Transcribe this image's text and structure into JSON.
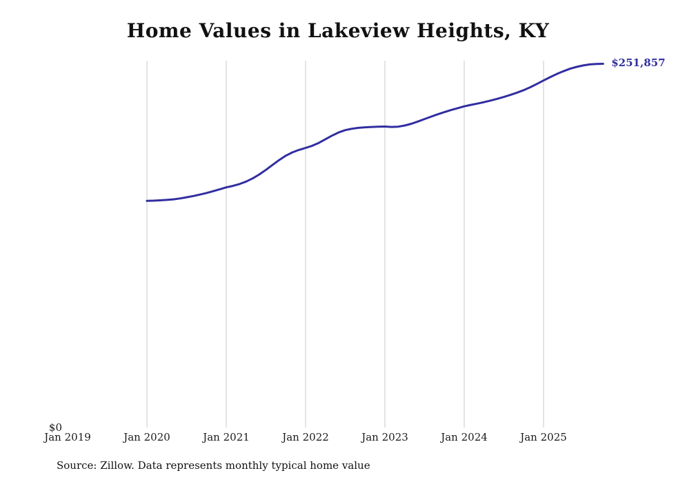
{
  "chart_data": {
    "type": "line",
    "title": "Home Values in Lakeview Heights, KY",
    "source": "Source: Zillow. Data represents monthly typical home value",
    "end_label": "$251,857",
    "line_color": "#312ea0",
    "gridline_color": "#c9c9c9",
    "grid": "vertical-only",
    "legend_position": "none",
    "y_axis": {
      "min_label": "$0",
      "ylim": [
        0,
        254000
      ]
    },
    "x_ticks": [
      {
        "label": "Jan 2019",
        "month": "2019-01",
        "gridline": false
      },
      {
        "label": "Jan 2020",
        "month": "2020-01",
        "gridline": true
      },
      {
        "label": "Jan 2021",
        "month": "2021-01",
        "gridline": true
      },
      {
        "label": "Jan 2022",
        "month": "2022-01",
        "gridline": true
      },
      {
        "label": "Jan 2023",
        "month": "2023-01",
        "gridline": true
      },
      {
        "label": "Jan 2024",
        "month": "2024-01",
        "gridline": true
      },
      {
        "label": "Jan 2025",
        "month": "2025-01",
        "gridline": true
      }
    ],
    "series": [
      {
        "name": "Monthly typical home value",
        "color": "#312ea0",
        "x": [
          "2020-01",
          "2020-02",
          "2020-03",
          "2020-04",
          "2020-05",
          "2020-06",
          "2020-07",
          "2020-08",
          "2020-09",
          "2020-10",
          "2020-11",
          "2020-12",
          "2021-01",
          "2021-02",
          "2021-03",
          "2021-04",
          "2021-05",
          "2021-06",
          "2021-07",
          "2021-08",
          "2021-09",
          "2021-10",
          "2021-11",
          "2021-12",
          "2022-01",
          "2022-02",
          "2022-03",
          "2022-04",
          "2022-05",
          "2022-06",
          "2022-07",
          "2022-08",
          "2022-09",
          "2022-10",
          "2022-11",
          "2022-12",
          "2023-01",
          "2023-02",
          "2023-03",
          "2023-04",
          "2023-05",
          "2023-06",
          "2023-07",
          "2023-08",
          "2023-09",
          "2023-10",
          "2023-11",
          "2023-12",
          "2024-01",
          "2024-02",
          "2024-03",
          "2024-04",
          "2024-05",
          "2024-06",
          "2024-07",
          "2024-08",
          "2024-09",
          "2024-10",
          "2024-11",
          "2024-12",
          "2025-01",
          "2025-02",
          "2025-03",
          "2025-04",
          "2025-05",
          "2025-06",
          "2025-07",
          "2025-08",
          "2025-09",
          "2025-10"
        ],
        "values": [
          157000,
          157100,
          157300,
          157600,
          158000,
          158600,
          159400,
          160300,
          161300,
          162400,
          163600,
          164900,
          166300,
          167300,
          168600,
          170300,
          172500,
          175200,
          178400,
          181800,
          185200,
          188200,
          190500,
          192200,
          193600,
          195100,
          197100,
          199600,
          202100,
          204300,
          205900,
          206900,
          207500,
          207900,
          208100,
          208300,
          208400,
          208100,
          208300,
          209100,
          210300,
          211900,
          213600,
          215300,
          216900,
          218400,
          219800,
          221100,
          222400,
          223400,
          224300,
          225300,
          226400,
          227600,
          228900,
          230300,
          231900,
          233600,
          235600,
          237900,
          240300,
          242600,
          244800,
          246700,
          248400,
          249700,
          250700,
          251400,
          251750,
          251857
        ]
      }
    ]
  }
}
